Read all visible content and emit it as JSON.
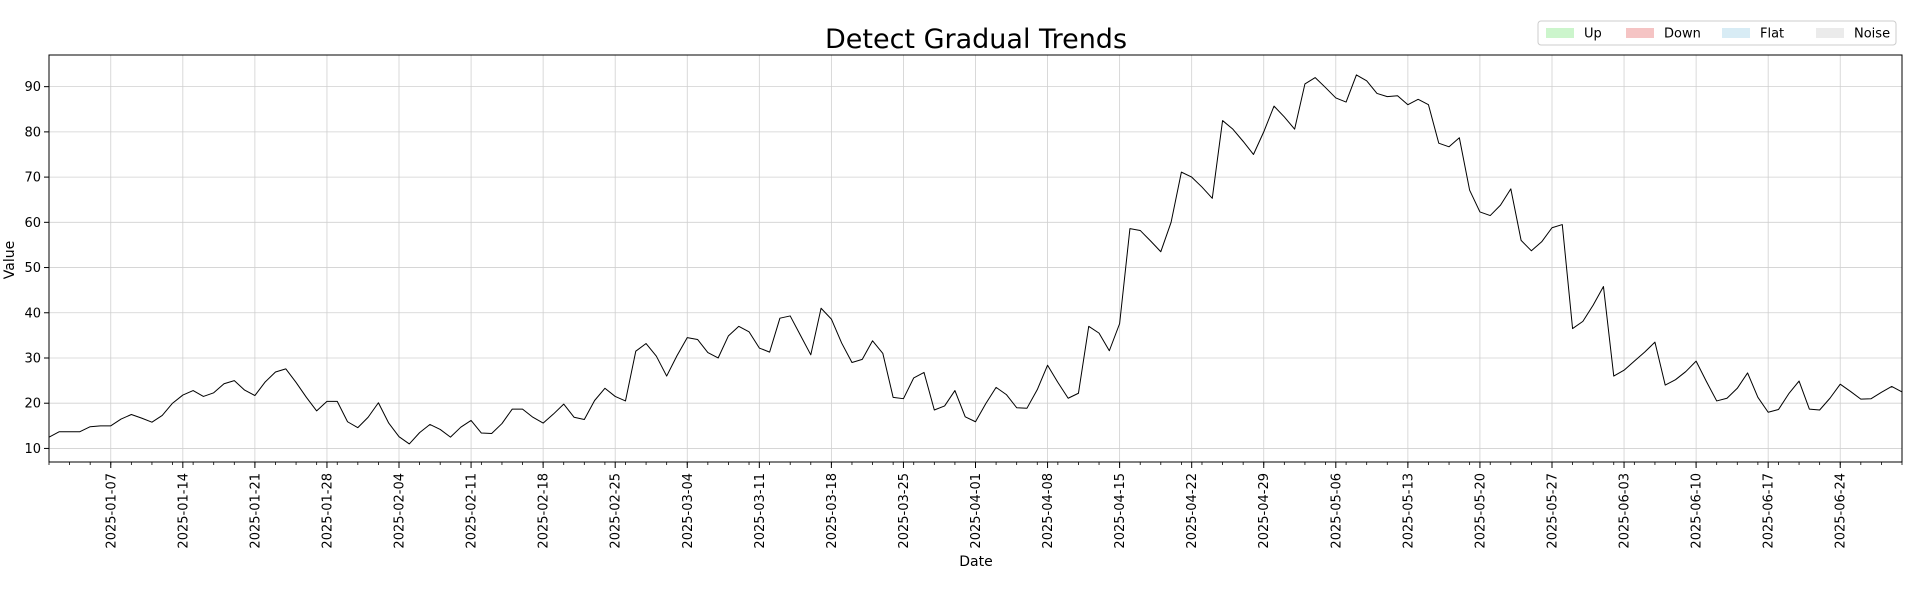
{
  "chart_data": {
    "type": "line",
    "title": "Detect Gradual Trends",
    "xlabel": "Date",
    "ylabel": "Value",
    "x_range": [
      "2025-01-01",
      "2025-06-30"
    ],
    "ylim": [
      7,
      97
    ],
    "grid": true,
    "line_color": "#000000",
    "y_ticks": [
      10,
      20,
      30,
      40,
      50,
      60,
      70,
      80,
      90
    ],
    "x_ticks": [
      "2025-01-07",
      "2025-01-14",
      "2025-01-21",
      "2025-01-28",
      "2025-02-04",
      "2025-02-11",
      "2025-02-18",
      "2025-02-25",
      "2025-03-04",
      "2025-03-11",
      "2025-03-18",
      "2025-03-25",
      "2025-04-01",
      "2025-04-08",
      "2025-04-15",
      "2025-04-22",
      "2025-04-29",
      "2025-05-06",
      "2025-05-13",
      "2025-05-20",
      "2025-05-27",
      "2025-06-03",
      "2025-06-10",
      "2025-06-17",
      "2025-06-24"
    ],
    "legend": {
      "position": "top-right",
      "entries": [
        {
          "label": "Up",
          "color": "#ccf5cc"
        },
        {
          "label": "Down",
          "color": "#f5c4c4"
        },
        {
          "label": "Flat",
          "color": "#d8ecf5"
        },
        {
          "label": "Noise",
          "color": "#ebebeb"
        }
      ]
    },
    "series": [
      {
        "start_date": "2025-01-01",
        "values": [
          12.5,
          13.7,
          13.7,
          13.7,
          14.8,
          15.0,
          15.0,
          16.5,
          17.5,
          16.7,
          15.8,
          17.3,
          20.0,
          21.8,
          22.8,
          21.5,
          22.3,
          24.3,
          25.0,
          22.9,
          21.7,
          24.7,
          26.9,
          27.6,
          24.6,
          21.3,
          18.3,
          20.4,
          20.4,
          15.9,
          14.6,
          16.9,
          20.1,
          15.6,
          12.6,
          11.0,
          13.5,
          15.3,
          14.2,
          12.5,
          14.7,
          16.2,
          13.4,
          13.3,
          15.5,
          18.7,
          18.7,
          16.9,
          15.6,
          17.6,
          19.8,
          16.9,
          16.4,
          20.6,
          23.3,
          21.5,
          20.5,
          31.5,
          33.2,
          30.4,
          26.0,
          30.5,
          34.5,
          34.1,
          31.2,
          30.0,
          34.9,
          37.0,
          35.8,
          32.2,
          31.3,
          38.8,
          39.3,
          35.0,
          30.7,
          41.0,
          38.6,
          33.3,
          29.0,
          29.7,
          33.8,
          31.0,
          21.3,
          21.0,
          25.6,
          26.8,
          18.5,
          19.4,
          22.8,
          17.0,
          15.9,
          19.9,
          23.5,
          21.9,
          19.0,
          18.9,
          23.0,
          28.4,
          24.6,
          21.1,
          22.2,
          37.0,
          35.5,
          31.6,
          37.6,
          58.6,
          58.2,
          55.9,
          53.5,
          60.0,
          71.1,
          70.0,
          67.8,
          65.3,
          82.5,
          80.6,
          77.9,
          75.0,
          80.0,
          85.7,
          83.3,
          80.6,
          90.6,
          92.0,
          89.8,
          87.5,
          86.6,
          92.6,
          91.3,
          88.5,
          87.8,
          88.0,
          86.0,
          87.2,
          86.0,
          77.5,
          76.7,
          78.7,
          67.1,
          62.3,
          61.5,
          63.8,
          67.4,
          56.0,
          53.7,
          55.7,
          58.8,
          59.5,
          36.5,
          38.1,
          41.7,
          45.8,
          26.0,
          27.3,
          29.3,
          31.3,
          33.5,
          24.0,
          25.2,
          27.0,
          29.3,
          24.8,
          20.5,
          21.1,
          23.3,
          26.7,
          21.3,
          18.0,
          18.6,
          22.1,
          24.9,
          18.7,
          18.5,
          21.1,
          24.2,
          22.6,
          20.9,
          21.0,
          22.4,
          23.7,
          22.5
        ]
      }
    ]
  }
}
